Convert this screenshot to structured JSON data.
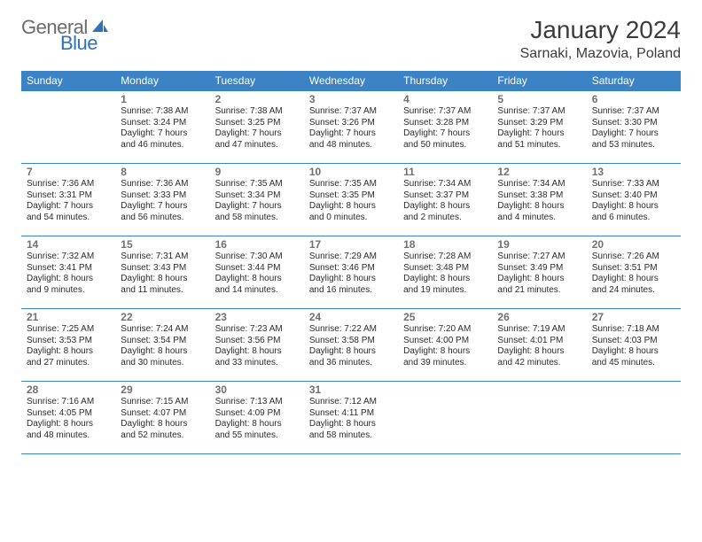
{
  "logo": {
    "text_gray": "General",
    "text_blue": "Blue"
  },
  "title": "January 2024",
  "location": "Sarnaki, Mazovia, Poland",
  "colors": {
    "header_bg": "#3b83c4",
    "header_text": "#ffffff",
    "rule": "#3b83c4",
    "daynum": "#707070",
    "body_text": "#2b2b2b",
    "logo_gray": "#6b6b6b",
    "logo_blue": "#2f72b8",
    "page_bg": "#ffffff"
  },
  "day_headers": [
    "Sunday",
    "Monday",
    "Tuesday",
    "Wednesday",
    "Thursday",
    "Friday",
    "Saturday"
  ],
  "weeks": [
    [
      {
        "n": "",
        "sr": "",
        "ss": "",
        "dl": ""
      },
      {
        "n": "1",
        "sr": "Sunrise: 7:38 AM",
        "ss": "Sunset: 3:24 PM",
        "dl": "Daylight: 7 hours and 46 minutes."
      },
      {
        "n": "2",
        "sr": "Sunrise: 7:38 AM",
        "ss": "Sunset: 3:25 PM",
        "dl": "Daylight: 7 hours and 47 minutes."
      },
      {
        "n": "3",
        "sr": "Sunrise: 7:37 AM",
        "ss": "Sunset: 3:26 PM",
        "dl": "Daylight: 7 hours and 48 minutes."
      },
      {
        "n": "4",
        "sr": "Sunrise: 7:37 AM",
        "ss": "Sunset: 3:28 PM",
        "dl": "Daylight: 7 hours and 50 minutes."
      },
      {
        "n": "5",
        "sr": "Sunrise: 7:37 AM",
        "ss": "Sunset: 3:29 PM",
        "dl": "Daylight: 7 hours and 51 minutes."
      },
      {
        "n": "6",
        "sr": "Sunrise: 7:37 AM",
        "ss": "Sunset: 3:30 PM",
        "dl": "Daylight: 7 hours and 53 minutes."
      }
    ],
    [
      {
        "n": "7",
        "sr": "Sunrise: 7:36 AM",
        "ss": "Sunset: 3:31 PM",
        "dl": "Daylight: 7 hours and 54 minutes."
      },
      {
        "n": "8",
        "sr": "Sunrise: 7:36 AM",
        "ss": "Sunset: 3:33 PM",
        "dl": "Daylight: 7 hours and 56 minutes."
      },
      {
        "n": "9",
        "sr": "Sunrise: 7:35 AM",
        "ss": "Sunset: 3:34 PM",
        "dl": "Daylight: 7 hours and 58 minutes."
      },
      {
        "n": "10",
        "sr": "Sunrise: 7:35 AM",
        "ss": "Sunset: 3:35 PM",
        "dl": "Daylight: 8 hours and 0 minutes."
      },
      {
        "n": "11",
        "sr": "Sunrise: 7:34 AM",
        "ss": "Sunset: 3:37 PM",
        "dl": "Daylight: 8 hours and 2 minutes."
      },
      {
        "n": "12",
        "sr": "Sunrise: 7:34 AM",
        "ss": "Sunset: 3:38 PM",
        "dl": "Daylight: 8 hours and 4 minutes."
      },
      {
        "n": "13",
        "sr": "Sunrise: 7:33 AM",
        "ss": "Sunset: 3:40 PM",
        "dl": "Daylight: 8 hours and 6 minutes."
      }
    ],
    [
      {
        "n": "14",
        "sr": "Sunrise: 7:32 AM",
        "ss": "Sunset: 3:41 PM",
        "dl": "Daylight: 8 hours and 9 minutes."
      },
      {
        "n": "15",
        "sr": "Sunrise: 7:31 AM",
        "ss": "Sunset: 3:43 PM",
        "dl": "Daylight: 8 hours and 11 minutes."
      },
      {
        "n": "16",
        "sr": "Sunrise: 7:30 AM",
        "ss": "Sunset: 3:44 PM",
        "dl": "Daylight: 8 hours and 14 minutes."
      },
      {
        "n": "17",
        "sr": "Sunrise: 7:29 AM",
        "ss": "Sunset: 3:46 PM",
        "dl": "Daylight: 8 hours and 16 minutes."
      },
      {
        "n": "18",
        "sr": "Sunrise: 7:28 AM",
        "ss": "Sunset: 3:48 PM",
        "dl": "Daylight: 8 hours and 19 minutes."
      },
      {
        "n": "19",
        "sr": "Sunrise: 7:27 AM",
        "ss": "Sunset: 3:49 PM",
        "dl": "Daylight: 8 hours and 21 minutes."
      },
      {
        "n": "20",
        "sr": "Sunrise: 7:26 AM",
        "ss": "Sunset: 3:51 PM",
        "dl": "Daylight: 8 hours and 24 minutes."
      }
    ],
    [
      {
        "n": "21",
        "sr": "Sunrise: 7:25 AM",
        "ss": "Sunset: 3:53 PM",
        "dl": "Daylight: 8 hours and 27 minutes."
      },
      {
        "n": "22",
        "sr": "Sunrise: 7:24 AM",
        "ss": "Sunset: 3:54 PM",
        "dl": "Daylight: 8 hours and 30 minutes."
      },
      {
        "n": "23",
        "sr": "Sunrise: 7:23 AM",
        "ss": "Sunset: 3:56 PM",
        "dl": "Daylight: 8 hours and 33 minutes."
      },
      {
        "n": "24",
        "sr": "Sunrise: 7:22 AM",
        "ss": "Sunset: 3:58 PM",
        "dl": "Daylight: 8 hours and 36 minutes."
      },
      {
        "n": "25",
        "sr": "Sunrise: 7:20 AM",
        "ss": "Sunset: 4:00 PM",
        "dl": "Daylight: 8 hours and 39 minutes."
      },
      {
        "n": "26",
        "sr": "Sunrise: 7:19 AM",
        "ss": "Sunset: 4:01 PM",
        "dl": "Daylight: 8 hours and 42 minutes."
      },
      {
        "n": "27",
        "sr": "Sunrise: 7:18 AM",
        "ss": "Sunset: 4:03 PM",
        "dl": "Daylight: 8 hours and 45 minutes."
      }
    ],
    [
      {
        "n": "28",
        "sr": "Sunrise: 7:16 AM",
        "ss": "Sunset: 4:05 PM",
        "dl": "Daylight: 8 hours and 48 minutes."
      },
      {
        "n": "29",
        "sr": "Sunrise: 7:15 AM",
        "ss": "Sunset: 4:07 PM",
        "dl": "Daylight: 8 hours and 52 minutes."
      },
      {
        "n": "30",
        "sr": "Sunrise: 7:13 AM",
        "ss": "Sunset: 4:09 PM",
        "dl": "Daylight: 8 hours and 55 minutes."
      },
      {
        "n": "31",
        "sr": "Sunrise: 7:12 AM",
        "ss": "Sunset: 4:11 PM",
        "dl": "Daylight: 8 hours and 58 minutes."
      },
      {
        "n": "",
        "sr": "",
        "ss": "",
        "dl": ""
      },
      {
        "n": "",
        "sr": "",
        "ss": "",
        "dl": ""
      },
      {
        "n": "",
        "sr": "",
        "ss": "",
        "dl": ""
      }
    ]
  ]
}
